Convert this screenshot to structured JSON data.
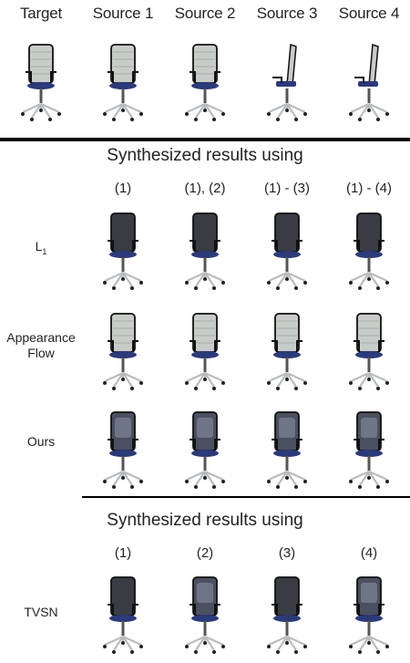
{
  "header": {
    "columns": [
      "Target",
      "Source 1",
      "Source 2",
      "Source 3",
      "Source 4"
    ]
  },
  "section1": {
    "title": "Synthesized results using",
    "columns": [
      "(1)",
      "(1), (2)",
      "(1) - (3)",
      "(1) - (4)"
    ],
    "rows": [
      {
        "label": "L",
        "sub": "1"
      },
      {
        "label": "Appearance\nFlow"
      },
      {
        "label": "Ours"
      }
    ]
  },
  "section2": {
    "title": "Synthesized results using",
    "columns": [
      "(1)",
      "(2)",
      "(3)",
      "(4)"
    ],
    "rows": [
      {
        "label": "TVSN"
      }
    ]
  },
  "colors": {
    "seat": "#2b3a78",
    "frame": "#111111",
    "mesh": "#c8ccc8",
    "metal": "#b8bcc0",
    "dark_back": "#3a3c44"
  }
}
